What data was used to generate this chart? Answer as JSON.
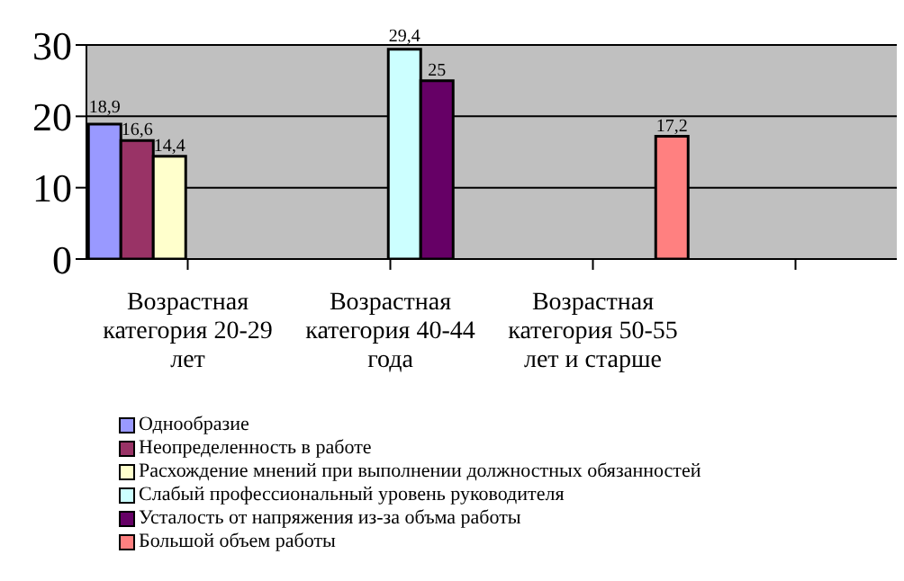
{
  "chart_data": {
    "type": "bar",
    "categories": [
      "Возрастная категория 20-29 лет",
      "Возрастная категория 40-44 года",
      "Возрастная категория 50-55 лет и старше",
      null
    ],
    "series": [
      {
        "name": "Однообразие",
        "color": "#9999ff",
        "values": [
          18.9,
          null,
          null,
          null
        ],
        "value_labels": [
          "18,9",
          null,
          null,
          null
        ]
      },
      {
        "name": "Неопределенность в работе",
        "color": "#993366",
        "values": [
          16.6,
          null,
          null,
          null
        ],
        "value_labels": [
          "16,6",
          null,
          null,
          null
        ]
      },
      {
        "name": "Расхождение мнений при выполнении должностных обязанностей",
        "color": "#ffffcc",
        "values": [
          14.4,
          null,
          null,
          null
        ],
        "value_labels": [
          "14,4",
          null,
          null,
          null
        ]
      },
      {
        "name": "Слабый профессиональный уровень руководителя",
        "color": "#ccffff",
        "values": [
          null,
          29.4,
          null,
          null
        ],
        "value_labels": [
          null,
          "29,4",
          null,
          null
        ]
      },
      {
        "name": "Усталость от напряжения из-за объма работы",
        "color": "#660066",
        "values": [
          null,
          25,
          null,
          null
        ],
        "value_labels": [
          null,
          "25",
          null,
          null
        ]
      },
      {
        "name": "Большой объем работы",
        "color": "#ff8080",
        "values": [
          null,
          null,
          17.2,
          null
        ],
        "value_labels": [
          null,
          null,
          "17,2",
          null
        ]
      }
    ],
    "ylim": [
      0,
      30
    ],
    "yticks": [
      0,
      10,
      20,
      30
    ],
    "grid": "y",
    "legend": "bottom left"
  }
}
